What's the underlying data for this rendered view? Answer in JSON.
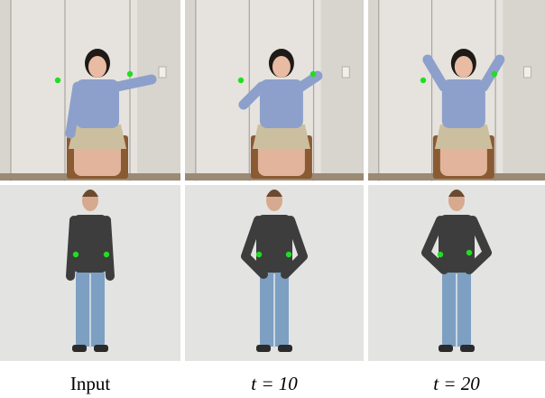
{
  "columns": [
    {
      "caption": "Input"
    },
    {
      "caption": "t = 10"
    },
    {
      "caption": "t = 20"
    }
  ]
}
